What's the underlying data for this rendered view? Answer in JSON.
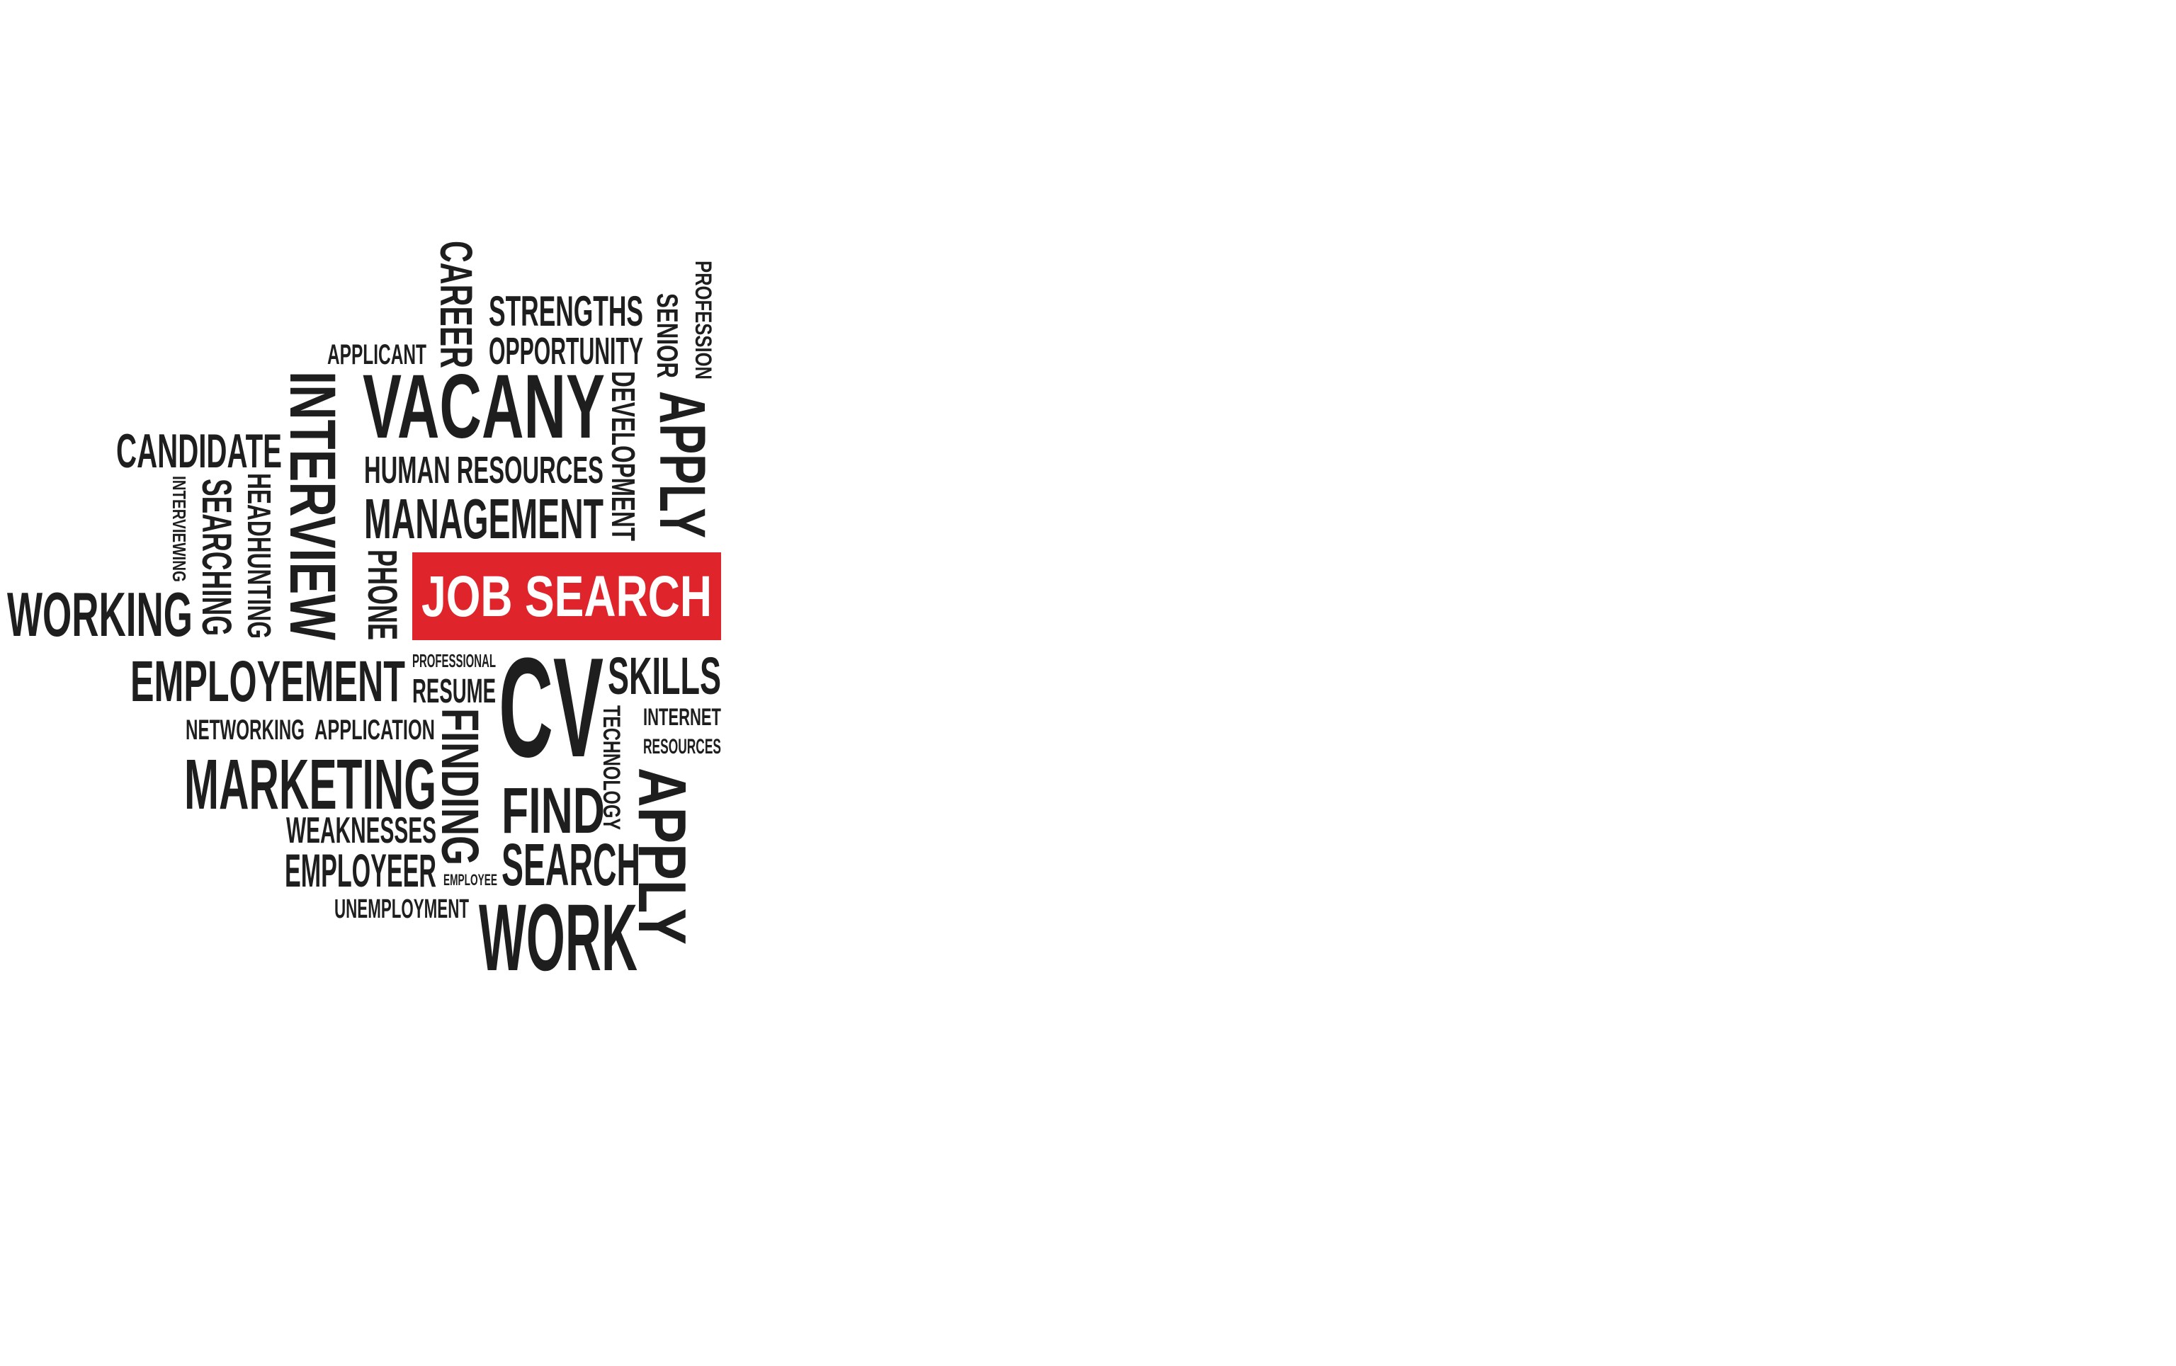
{
  "word_cloud": {
    "highlight_color": "#e0242b",
    "text_color": "#1e1e1e",
    "highlight": "JOB SEARCH",
    "words": {
      "career": "CAREER",
      "strengths": "STRENGTHS",
      "profession": "PROFESSION",
      "senior": "SENIOR",
      "applicant": "APPLICANT",
      "opportunity": "OPPORTUNITY",
      "interview": "INTERVIEW",
      "vacany": "VACANY",
      "development": "DEVELOPMENT",
      "apply_top": "APPLY",
      "candidate": "CANDIDATE",
      "human_resources": "HUMAN RESOURCES",
      "interviewing": "INTERVIEWING",
      "searching": "SEARCHING",
      "headhunting": "HEADHUNTING",
      "management": "MANAGEMENT",
      "phone": "PHONE",
      "working": "WORKING",
      "employement": "EMPLOYEMENT",
      "professional": "PROFESSIONAL",
      "resume": "RESUME",
      "cv": "CV",
      "skills": "SKILLS",
      "networking": "NETWORKING",
      "application": "APPLICATION",
      "finding": "FINDING",
      "technology": "TECHNOLOGY",
      "internet": "INTERNET",
      "resources": "RESOURCES",
      "marketing": "MARKETING",
      "find": "FIND",
      "apply_bottom": "APPLY",
      "weaknesses": "WEAKNESSES",
      "employeer": "EMPLOYEER",
      "employee": "EMPLOYEE",
      "search": "SEARCH",
      "unemployment": "UNEMPLOYMENT",
      "work": "WORK"
    }
  }
}
